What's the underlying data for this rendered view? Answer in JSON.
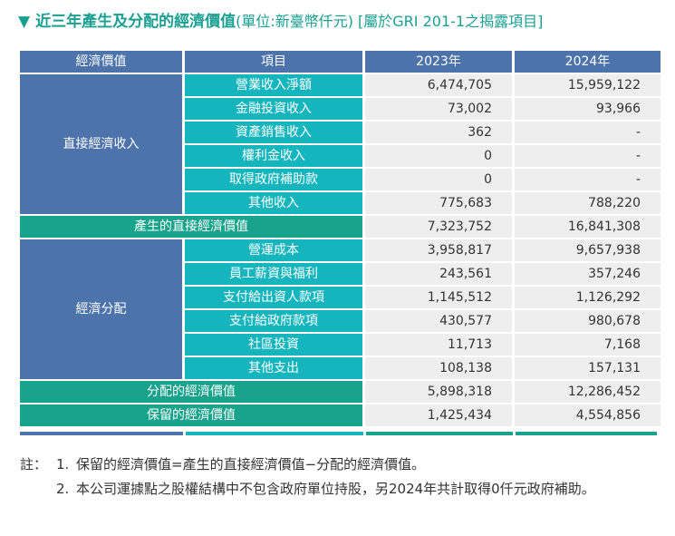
{
  "title": {
    "marker": "▼",
    "main": "近三年產生及分配的經濟價值",
    "unit": "(單位:新臺幣仟元) [屬於GRI 201-1之揭露項目]"
  },
  "table": {
    "headers": [
      "經濟價值",
      "項目",
      "2023年",
      "2024年"
    ],
    "groups": {
      "direct": "直接經濟收入",
      "distribution": "經濟分配"
    },
    "direct_rows": [
      {
        "item": "營業收入淨額",
        "v2023": "6,474,705",
        "v2024": "15,959,122"
      },
      {
        "item": "金融投資收入",
        "v2023": "73,002",
        "v2024": "93,966"
      },
      {
        "item": "資產銷售收入",
        "v2023": "362",
        "v2024": "-"
      },
      {
        "item": "權利金收入",
        "v2023": "0",
        "v2024": "-"
      },
      {
        "item": "取得政府補助款",
        "v2023": "0",
        "v2024": "-"
      },
      {
        "item": "其他收入",
        "v2023": "775,683",
        "v2024": "788,220"
      }
    ],
    "direct_total": {
      "label": "產生的直接經濟價值",
      "v2023": "7,323,752",
      "v2024": "16,841,308"
    },
    "distribution_rows": [
      {
        "item": "營運成本",
        "v2023": "3,958,817",
        "v2024": "9,657,938"
      },
      {
        "item": "員工薪資與福利",
        "v2023": "243,561",
        "v2024": "357,246"
      },
      {
        "item": "支付給出資人款項",
        "v2023": "1,145,512",
        "v2024": "1,126,292"
      },
      {
        "item": "支付給政府款項",
        "v2023": "430,577",
        "v2024": "980,678"
      },
      {
        "item": "社區投資",
        "v2023": "11,713",
        "v2024": "7,168"
      },
      {
        "item": "其他支出",
        "v2023": "108,138",
        "v2024": "157,131"
      }
    ],
    "distribution_total": {
      "label": "分配的經濟價值",
      "v2023": "5,898,318",
      "v2024": "12,286,452"
    },
    "retained_total": {
      "label": "保留的經濟價值",
      "v2023": "1,425,434",
      "v2024": "4,554,856"
    }
  },
  "colors": {
    "header": "#4d73ab",
    "item": "#14b5bd",
    "total": "#18a38c",
    "value_bg": "#eeeeee"
  },
  "notes": {
    "label": "註：",
    "items": [
      {
        "num": "1.",
        "text": "保留的經濟價值=產生的直接經濟價值−分配的經濟價值。"
      },
      {
        "num": "2.",
        "text": "本公司運據點之股權結構中不包含政府單位持股，另2024年共計取得0仟元政府補助。"
      }
    ]
  }
}
